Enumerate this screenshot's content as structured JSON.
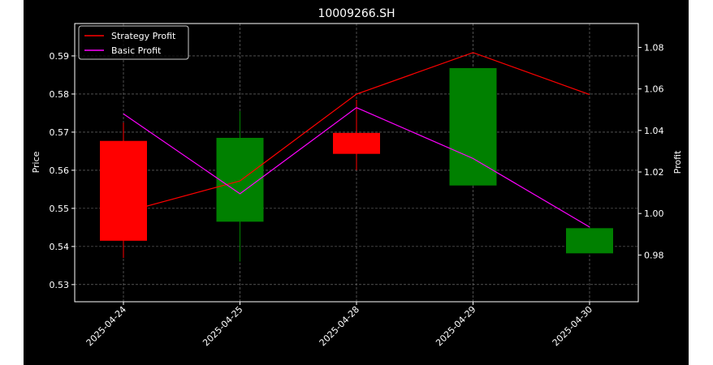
{
  "chart_data": {
    "type": "candlestick",
    "title": "10009266.SH",
    "xlabel": "",
    "ylabel": "Price",
    "y2label": "Profit",
    "categories": [
      "2025-04-24",
      "2025-04-25",
      "2025-04-28",
      "2025-04-29",
      "2025-04-30"
    ],
    "ylim": [
      0.5255,
      0.5985
    ],
    "y2lim": [
      0.9575,
      1.0915
    ],
    "yticks": [
      "0.53",
      "0.54",
      "0.55",
      "0.56",
      "0.57",
      "0.58",
      "0.59"
    ],
    "y2ticks": [
      "0.98",
      "1.00",
      "1.02",
      "1.04",
      "1.06",
      "1.08"
    ],
    "grid": true,
    "legend_position": "top-left",
    "candles": [
      {
        "date": "2025-04-24",
        "open": 0.5677,
        "close": 0.5415,
        "high": 0.5725,
        "low": 0.537,
        "color": "#ff0000"
      },
      {
        "date": "2025-04-25",
        "open": 0.5465,
        "close": 0.5685,
        "high": 0.5755,
        "low": 0.536,
        "color": "#008000"
      },
      {
        "date": "2025-04-28",
        "open": 0.5698,
        "close": 0.5643,
        "high": 0.5785,
        "low": 0.56,
        "color": "#ff0000"
      },
      {
        "date": "2025-04-29",
        "open": 0.556,
        "close": 0.5868,
        "high": 0.5868,
        "low": 0.556,
        "color": "#008000"
      },
      {
        "date": "2025-04-30",
        "open": 0.5382,
        "close": 0.5448,
        "high": 0.5448,
        "low": 0.5382,
        "color": "#008000"
      }
    ],
    "series": [
      {
        "name": "Strategy Profit",
        "color": "#ff0000",
        "axis": "right",
        "values": [
          1.0005,
          1.0157,
          1.0575,
          1.0775,
          1.0573
        ]
      },
      {
        "name": "Basic Profit",
        "color": "#ff00ff",
        "axis": "right",
        "values": [
          1.048,
          1.0095,
          1.051,
          1.0265,
          0.9935
        ]
      }
    ]
  }
}
